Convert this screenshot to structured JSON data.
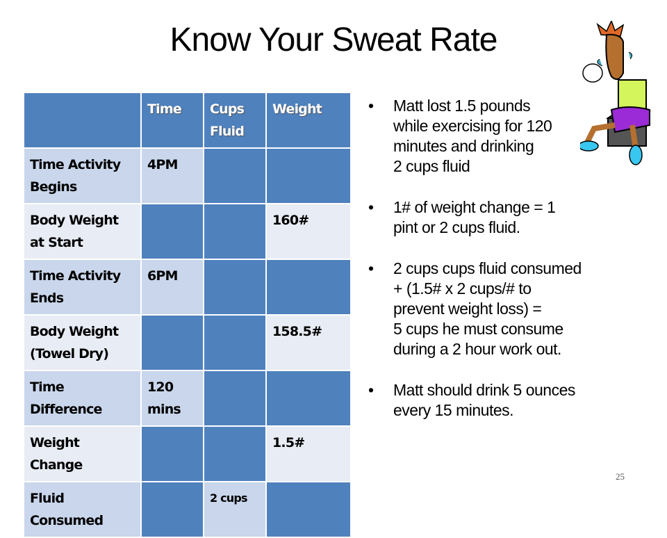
{
  "title": "Know Your Sweat Rate",
  "table": {
    "headers": [
      "",
      "Time",
      "Cups Fluid",
      "Weight"
    ],
    "rows": [
      [
        "Time Activity Begins",
        "4PM",
        "",
        ""
      ],
      [
        "Body Weight at Start",
        "",
        "",
        "160#"
      ],
      [
        "Time Activity Ends",
        "6PM",
        "",
        ""
      ],
      [
        "Body Weight (Towel Dry)",
        "",
        "",
        "158.5#"
      ],
      [
        "Time Difference",
        "120 mins",
        "",
        ""
      ],
      [
        "Weight Change",
        "",
        "",
        "1.5#"
      ],
      [
        "Fluid Consumed",
        "",
        "2 cups",
        ""
      ]
    ]
  },
  "bullets": [
    "Matt lost 1.5 pounds\nwhile exercising for 120\nminutes and drinking\n2 cups fluid",
    "1# of weight change = 1\npint or 2 cups fluid.",
    "2 cups cups fluid consumed\n+ (1.5#  x 2 cups/# to\nprevent weight loss) =\n5  cups he must consume\nduring a 2 hour work out.",
    "Matt should drink 5 ounces\nevery 15 minutes."
  ],
  "slide_number": "25"
}
